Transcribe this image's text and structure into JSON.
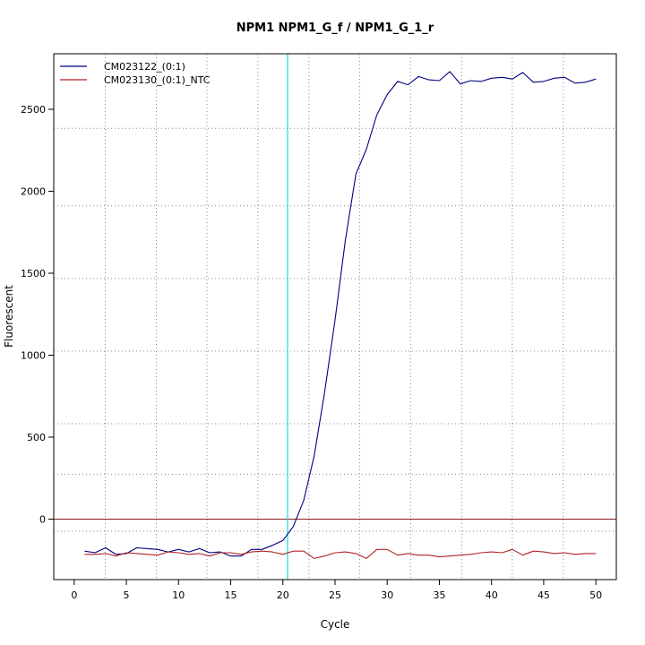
{
  "chart_data": {
    "type": "line",
    "title": "NPM1  NPM1_G_f / NPM1_G_1_r",
    "xlabel": "Cycle",
    "ylabel": "Fluorescent",
    "xlim": [
      -1.96,
      51.96
    ],
    "ylim": [
      -369,
      2839
    ],
    "x_ticks": [
      0,
      5,
      10,
      15,
      20,
      25,
      30,
      35,
      40,
      45,
      50
    ],
    "y_ticks": [
      0,
      500,
      1000,
      1500,
      2000,
      2500
    ],
    "x_grid_dotted": [
      2.98,
      7.87,
      12.72,
      17.61,
      22.5,
      27.35,
      32.24,
      37.13,
      41.98,
      46.87
    ],
    "y_grid_dotted": [
      -74,
      274,
      582,
      1025,
      1468,
      1911,
      2384
    ],
    "threshold_cycle": 20.45,
    "baseline": 0,
    "legend_position": "top-left",
    "colors": {
      "threshold": "#22d3e6",
      "baseline": "#8b1a1a",
      "grid": "#888888"
    },
    "series": [
      {
        "name": "CM023122_(0:1)",
        "color": "#00007f",
        "x": [
          1,
          2,
          3,
          4,
          5,
          6,
          7,
          8,
          9,
          10,
          11,
          12,
          13,
          14,
          15,
          16,
          17,
          18,
          19,
          20,
          21,
          22,
          23,
          24,
          25,
          26,
          27,
          28,
          29,
          30,
          31,
          32,
          33,
          34,
          35,
          36,
          37,
          38,
          39,
          40,
          41,
          42,
          43,
          44,
          45,
          46,
          47,
          48,
          49,
          50
        ],
        "y": [
          -195,
          -205,
          -175,
          -215,
          -210,
          -175,
          -180,
          -185,
          -200,
          -185,
          -200,
          -180,
          -205,
          -200,
          -225,
          -225,
          -185,
          -185,
          -160,
          -130,
          -45,
          115,
          385,
          775,
          1215,
          1705,
          2105,
          2255,
          2465,
          2590,
          2670,
          2650,
          2700,
          2680,
          2675,
          2730,
          2655,
          2675,
          2670,
          2690,
          2695,
          2685,
          2725,
          2665,
          2670,
          2690,
          2695,
          2660,
          2665,
          2685
        ]
      },
      {
        "name": "CM023130_(0:1)_NTC",
        "color": "#b22222",
        "x": [
          1,
          2,
          3,
          4,
          5,
          6,
          7,
          8,
          9,
          10,
          11,
          12,
          13,
          14,
          15,
          16,
          17,
          18,
          19,
          20,
          21,
          22,
          23,
          24,
          25,
          26,
          27,
          28,
          29,
          30,
          31,
          32,
          33,
          34,
          35,
          36,
          37,
          38,
          39,
          40,
          41,
          42,
          43,
          44,
          45,
          46,
          47,
          48,
          49,
          50
        ],
        "y": [
          -215,
          -215,
          -210,
          -225,
          -205,
          -210,
          -215,
          -220,
          -200,
          -205,
          -215,
          -210,
          -225,
          -205,
          -205,
          -215,
          -200,
          -195,
          -200,
          -215,
          -195,
          -195,
          -240,
          -225,
          -205,
          -200,
          -210,
          -240,
          -185,
          -185,
          -220,
          -210,
          -220,
          -220,
          -230,
          -225,
          -220,
          -215,
          -205,
          -200,
          -205,
          -185,
          -220,
          -195,
          -200,
          -210,
          -205,
          -215,
          -210,
          -210
        ]
      }
    ]
  }
}
